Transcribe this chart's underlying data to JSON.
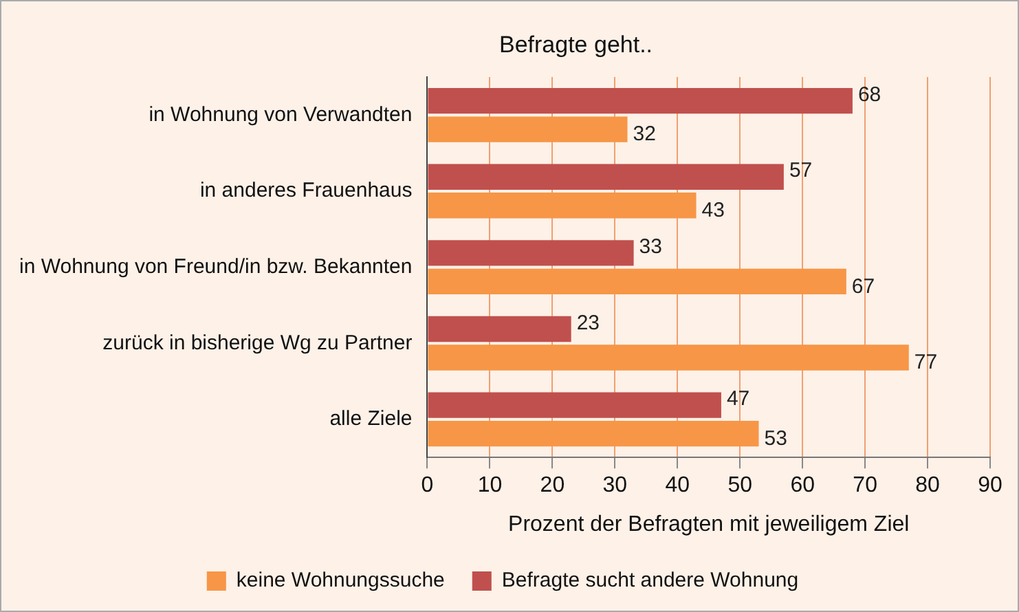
{
  "chart_data": {
    "type": "bar",
    "orientation": "horizontal",
    "title": "Befragte geht..",
    "xlabel": "Prozent der Befragten mit jeweiligem Ziel",
    "categories": [
      "in Wohnung von Verwandten",
      "in anderes Frauenhaus",
      "in Wohnung von Freund/in bzw. Bekannten",
      "zurück in bisherige Wg zu Partner",
      "alle Ziele"
    ],
    "series": [
      {
        "name": "Befragte sucht andere Wohnung",
        "color": "#c0504d",
        "values": [
          68,
          57,
          33,
          23,
          47
        ]
      },
      {
        "name": "keine Wohnungssuche",
        "color": "#f79646",
        "values": [
          32,
          43,
          67,
          77,
          53
        ]
      }
    ],
    "xlim": [
      0,
      90
    ],
    "xticks": [
      0,
      10,
      20,
      30,
      40,
      50,
      60,
      70,
      80,
      90
    ],
    "grid": "x",
    "legend": "bottom",
    "data_labels": true
  }
}
